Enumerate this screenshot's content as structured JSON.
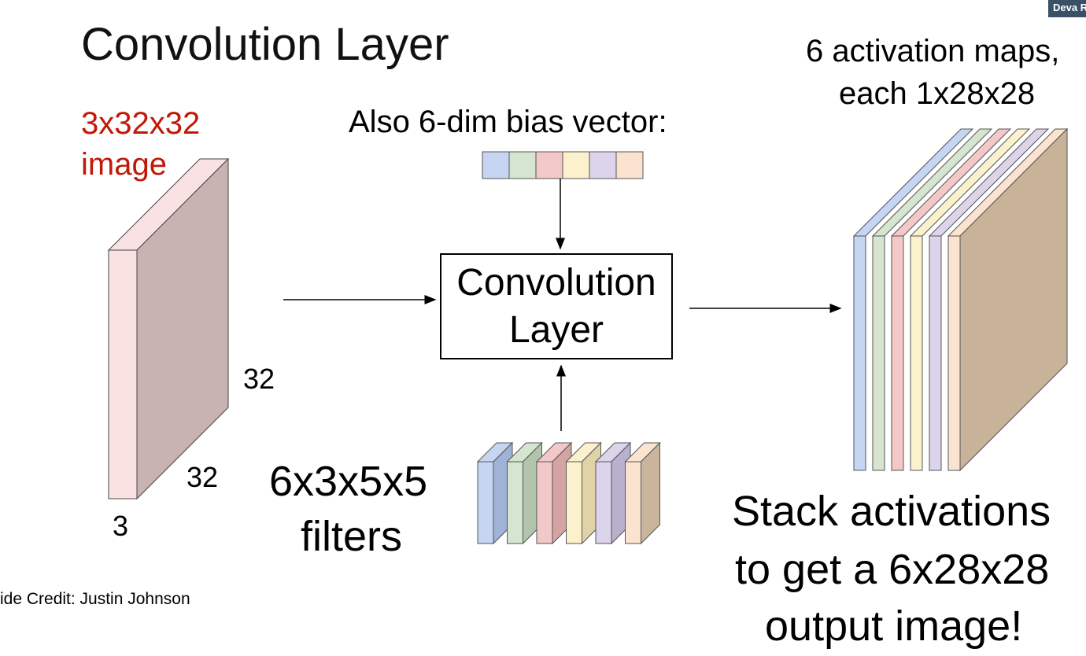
{
  "slide": {
    "title": "Convolution Layer",
    "credit": "ide Credit: Justin Johnson",
    "corner_badge": "Deva R"
  },
  "input": {
    "label_line1": "3x32x32",
    "label_line2": "image",
    "height_label": "32",
    "width_label": "32",
    "depth_label": "3",
    "colors": {
      "front": "#fbe2e2",
      "side": "#c9b2b2",
      "label": "#c21807"
    }
  },
  "bias": {
    "label": "Also 6-dim bias vector:",
    "cell_colors": [
      "#c5d5f2",
      "#d5e5cf",
      "#f2c8c8",
      "#fbf1cd",
      "#dcd4ea",
      "#fbe3cf"
    ]
  },
  "conv_box": {
    "line1": "Convolution",
    "line2": "Layer"
  },
  "filters": {
    "label_line1": "6x3x5x5",
    "label_line2": "filters",
    "front_colors": [
      "#c5d5f2",
      "#d5e5cf",
      "#f2c8c8",
      "#fbf1cd",
      "#dcd4ea",
      "#fbe3cf"
    ],
    "side_colors": [
      "#9fb3d8",
      "#b2c4ab",
      "#d4a4a4",
      "#e0d3a6",
      "#b8b0cc",
      "#cbb49c"
    ]
  },
  "output": {
    "label_line1": "6 activation maps,",
    "label_line2": "each 1x28x28",
    "caption_line1": "Stack activations",
    "caption_line2": "to get a 6x28x28",
    "caption_line3": "output image!",
    "layer_colors": [
      "#c5d5f2",
      "#d5e5cf",
      "#f2c8c8",
      "#fbf1cd",
      "#dcd4ea",
      "#fbe3cf"
    ],
    "back_color": "#c9b29a"
  }
}
